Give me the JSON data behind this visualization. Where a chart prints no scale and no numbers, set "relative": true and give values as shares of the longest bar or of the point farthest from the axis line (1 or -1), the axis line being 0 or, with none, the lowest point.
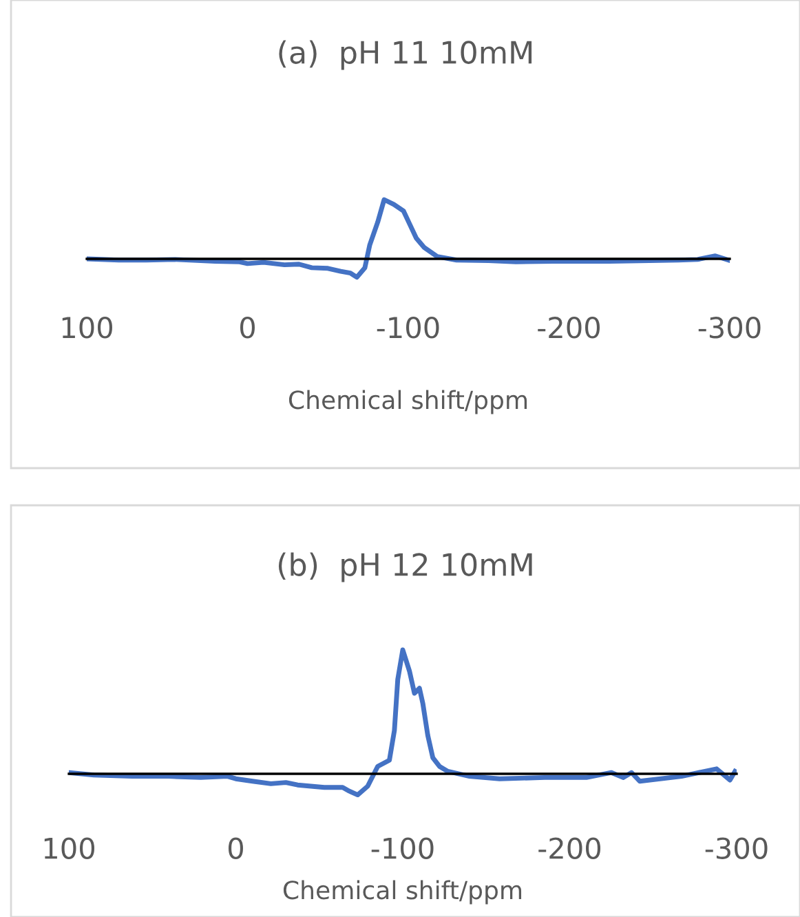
{
  "chart_data": [
    {
      "type": "line",
      "title": "(a)  pH 11 10mM",
      "xlabel": "Chemical shift/ppm",
      "relative": true,
      "xlim": [
        100,
        -300
      ],
      "xticks": [
        100,
        0,
        -100,
        -200,
        -300
      ],
      "grid": false,
      "legend": false,
      "series": [
        {
          "color": "#4472c4",
          "x": [
            100,
            80,
            63,
            45,
            20,
            5,
            0,
            -10,
            -23,
            -32,
            -40,
            -50,
            -58,
            -64,
            -68,
            -73,
            -76,
            -81,
            -85,
            -91,
            -97,
            -101,
            -105,
            -110,
            -118,
            -130,
            -150,
            -167,
            -190,
            -225,
            -250,
            -268,
            -280,
            -291,
            -299
          ],
          "values": [
            0,
            -0.02,
            -0.02,
            -0.01,
            -0.04,
            -0.05,
            -0.08,
            -0.06,
            -0.1,
            -0.09,
            -0.15,
            -0.16,
            -0.21,
            -0.24,
            -0.31,
            -0.15,
            0.23,
            0.62,
            1.0,
            0.92,
            0.81,
            0.58,
            0.35,
            0.19,
            0.04,
            -0.02,
            -0.03,
            -0.05,
            -0.04,
            -0.04,
            -0.03,
            -0.02,
            -0.01,
            0.05,
            -0.02
          ]
        }
      ]
    },
    {
      "type": "line",
      "title": "(b)  pH 12 10mM",
      "xlabel": "Chemical shift/ppm",
      "relative": true,
      "xlim": [
        100,
        -300
      ],
      "xticks": [
        100,
        0,
        -100,
        -200,
        -300
      ],
      "grid": false,
      "legend": false,
      "series": [
        {
          "color": "#4472c4",
          "x": [
            100,
            85,
            62,
            40,
            21,
            5,
            0,
            -10,
            -21,
            -30,
            -37,
            -45,
            -53,
            -64,
            -68,
            -73,
            -79,
            -85,
            -92,
            -95,
            -97,
            -100,
            -104,
            -107,
            -110,
            -112,
            -115,
            -118,
            -122,
            -127,
            -140,
            -158,
            -185,
            -210,
            -225,
            -232,
            -237,
            -242,
            -267,
            -288,
            -296,
            -299
          ],
          "values": [
            0.01,
            -0.01,
            -0.02,
            -0.02,
            -0.03,
            -0.02,
            -0.04,
            -0.06,
            -0.08,
            -0.07,
            -0.09,
            -0.1,
            -0.11,
            -0.11,
            -0.14,
            -0.17,
            -0.1,
            0.06,
            0.11,
            0.35,
            0.76,
            1.0,
            0.83,
            0.65,
            0.69,
            0.57,
            0.31,
            0.13,
            0.06,
            0.02,
            -0.02,
            -0.04,
            -0.03,
            -0.03,
            0.01,
            -0.03,
            0.01,
            -0.06,
            -0.02,
            0.04,
            -0.05,
            0.02
          ]
        }
      ]
    }
  ]
}
